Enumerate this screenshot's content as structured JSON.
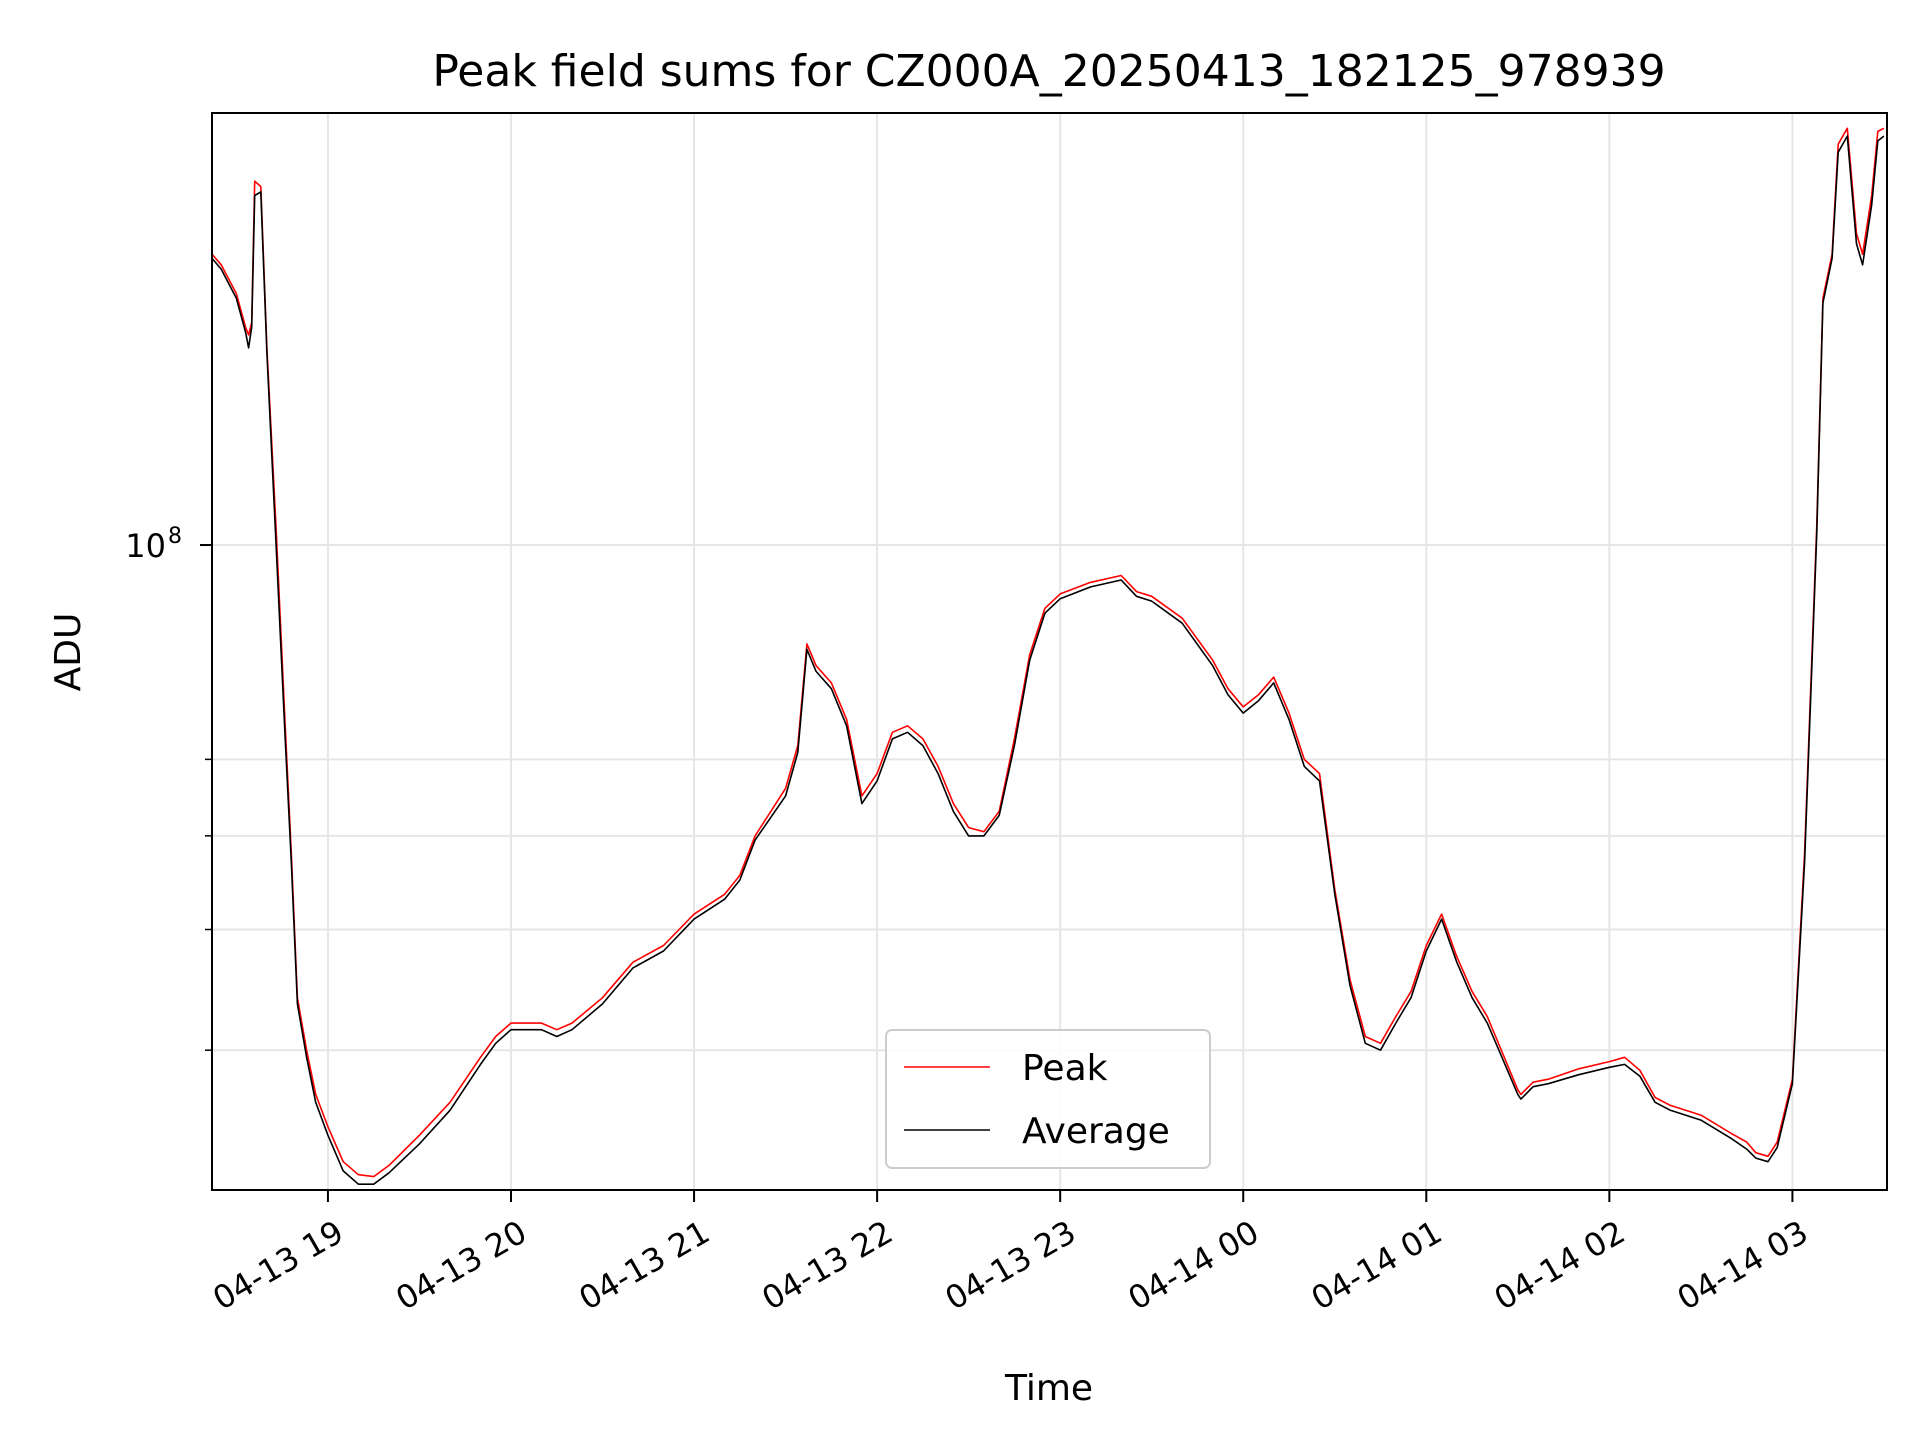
{
  "chart_data": {
    "type": "line",
    "title": "Peak field sums for CZ000A_20250413_182125_978939",
    "xlabel": "Time",
    "ylabel": "ADU",
    "y_scale": "log",
    "grid": true,
    "legend_placement": "bottom-center",
    "xlim": [
      "2025-04-13 18:22",
      "2025-04-14 03:31"
    ],
    "ylim": [
      21500000,
      280000000
    ],
    "x_ticks": [
      {
        "label": "04-13 19",
        "value": "2025-04-13 19:00"
      },
      {
        "label": "04-13 20",
        "value": "2025-04-13 20:00"
      },
      {
        "label": "04-13 21",
        "value": "2025-04-13 21:00"
      },
      {
        "label": "04-13 22",
        "value": "2025-04-13 22:00"
      },
      {
        "label": "04-13 23",
        "value": "2025-04-13 23:00"
      },
      {
        "label": "04-14 00",
        "value": "2025-04-14 00:00"
      },
      {
        "label": "04-14 01",
        "value": "2025-04-14 01:00"
      },
      {
        "label": "04-14 02",
        "value": "2025-04-14 02:00"
      },
      {
        "label": "04-14 03",
        "value": "2025-04-14 03:00"
      }
    ],
    "y_tick_label": {
      "base": "10",
      "exponent": "8",
      "value": 100000000
    },
    "y_minor_ticks": [
      30000000,
      40000000,
      50000000,
      60000000
    ],
    "series": [
      {
        "name": "Peak",
        "color": "#ff0000",
        "x": [
          "2025-04-13 18:22",
          "2025-04-13 18:25",
          "2025-04-13 18:30",
          "2025-04-13 18:33",
          "2025-04-13 18:34",
          "2025-04-13 18:35",
          "2025-04-13 18:36",
          "2025-04-13 18:38",
          "2025-04-13 18:40",
          "2025-04-13 18:43",
          "2025-04-13 18:46",
          "2025-04-13 18:48",
          "2025-04-13 18:50",
          "2025-04-13 18:53",
          "2025-04-13 18:56",
          "2025-04-13 19:00",
          "2025-04-13 19:05",
          "2025-04-13 19:10",
          "2025-04-13 19:15",
          "2025-04-13 19:20",
          "2025-04-13 19:30",
          "2025-04-13 19:40",
          "2025-04-13 19:50",
          "2025-04-13 19:55",
          "2025-04-13 20:00",
          "2025-04-13 20:10",
          "2025-04-13 20:15",
          "2025-04-13 20:20",
          "2025-04-13 20:30",
          "2025-04-13 20:40",
          "2025-04-13 20:50",
          "2025-04-13 21:00",
          "2025-04-13 21:10",
          "2025-04-13 21:15",
          "2025-04-13 21:20",
          "2025-04-13 21:30",
          "2025-04-13 21:34",
          "2025-04-13 21:37",
          "2025-04-13 21:40",
          "2025-04-13 21:45",
          "2025-04-13 21:50",
          "2025-04-13 21:55",
          "2025-04-13 22:00",
          "2025-04-13 22:05",
          "2025-04-13 22:10",
          "2025-04-13 22:15",
          "2025-04-13 22:20",
          "2025-04-13 22:25",
          "2025-04-13 22:30",
          "2025-04-13 22:35",
          "2025-04-13 22:40",
          "2025-04-13 22:45",
          "2025-04-13 22:50",
          "2025-04-13 22:55",
          "2025-04-13 23:00",
          "2025-04-13 23:10",
          "2025-04-13 23:20",
          "2025-04-13 23:25",
          "2025-04-13 23:30",
          "2025-04-13 23:40",
          "2025-04-13 23:50",
          "2025-04-13 23:55",
          "2025-04-14 00:00",
          "2025-04-14 00:05",
          "2025-04-14 00:10",
          "2025-04-14 00:15",
          "2025-04-14 00:20",
          "2025-04-14 00:25",
          "2025-04-14 00:30",
          "2025-04-14 00:35",
          "2025-04-14 00:40",
          "2025-04-14 00:45",
          "2025-04-14 00:50",
          "2025-04-14 00:55",
          "2025-04-14 01:00",
          "2025-04-14 01:05",
          "2025-04-14 01:10",
          "2025-04-14 01:15",
          "2025-04-14 01:20",
          "2025-04-14 01:30",
          "2025-04-14 01:31",
          "2025-04-14 01:35",
          "2025-04-14 01:40",
          "2025-04-14 01:50",
          "2025-04-14 02:00",
          "2025-04-14 02:05",
          "2025-04-14 02:10",
          "2025-04-14 02:15",
          "2025-04-14 02:20",
          "2025-04-14 02:30",
          "2025-04-14 02:40",
          "2025-04-14 02:45",
          "2025-04-14 02:48",
          "2025-04-14 02:52",
          "2025-04-14 02:55",
          "2025-04-14 03:00",
          "2025-04-14 03:04",
          "2025-04-14 03:08",
          "2025-04-14 03:10",
          "2025-04-14 03:13",
          "2025-04-14 03:15",
          "2025-04-14 03:18",
          "2025-04-14 03:21",
          "2025-04-14 03:23",
          "2025-04-14 03:26",
          "2025-04-14 03:28",
          "2025-04-14 03:30"
        ],
        "y": [
          200000000,
          195000000,
          182000000,
          168000000,
          165000000,
          170000000,
          238000000,
          235000000,
          160000000,
          104000000,
          65000000,
          48000000,
          34000000,
          30000000,
          27000000,
          25000000,
          23000000,
          22300000,
          22200000,
          22800000,
          24500000,
          26500000,
          29500000,
          31000000,
          32000000,
          32000000,
          31500000,
          32000000,
          34000000,
          37000000,
          38500000,
          41500000,
          43500000,
          45500000,
          50000000,
          56000000,
          62000000,
          79000000,
          75000000,
          72000000,
          66000000,
          55000000,
          58000000,
          64000000,
          65000000,
          63000000,
          59000000,
          54000000,
          51000000,
          50500000,
          53000000,
          63000000,
          77000000,
          86000000,
          89000000,
          91500000,
          93000000,
          89500000,
          88500000,
          84000000,
          76000000,
          71000000,
          68000000,
          70000000,
          73000000,
          67000000,
          60000000,
          58000000,
          44000000,
          35500000,
          31000000,
          30500000,
          32500000,
          34500000,
          38500000,
          41500000,
          37500000,
          34500000,
          32500000,
          27300000,
          27000000,
          27800000,
          28000000,
          28700000,
          29200000,
          29500000,
          28600000,
          26800000,
          26300000,
          25700000,
          24600000,
          24100000,
          23500000,
          23300000,
          24100000,
          28000000,
          48000000,
          105000000,
          180000000,
          200000000,
          260000000,
          270000000,
          210000000,
          200000000,
          230000000,
          268000000,
          270000000
        ]
      },
      {
        "name": "Average",
        "color": "#000000",
        "x": [
          "2025-04-13 18:22",
          "2025-04-13 18:25",
          "2025-04-13 18:30",
          "2025-04-13 18:33",
          "2025-04-13 18:34",
          "2025-04-13 18:35",
          "2025-04-13 18:36",
          "2025-04-13 18:38",
          "2025-04-13 18:40",
          "2025-04-13 18:43",
          "2025-04-13 18:46",
          "2025-04-13 18:48",
          "2025-04-13 18:50",
          "2025-04-13 18:53",
          "2025-04-13 18:56",
          "2025-04-13 19:00",
          "2025-04-13 19:05",
          "2025-04-13 19:10",
          "2025-04-13 19:15",
          "2025-04-13 19:20",
          "2025-04-13 19:30",
          "2025-04-13 19:40",
          "2025-04-13 19:50",
          "2025-04-13 19:55",
          "2025-04-13 20:00",
          "2025-04-13 20:10",
          "2025-04-13 20:15",
          "2025-04-13 20:20",
          "2025-04-13 20:30",
          "2025-04-13 20:40",
          "2025-04-13 20:50",
          "2025-04-13 21:00",
          "2025-04-13 21:10",
          "2025-04-13 21:15",
          "2025-04-13 21:20",
          "2025-04-13 21:30",
          "2025-04-13 21:34",
          "2025-04-13 21:37",
          "2025-04-13 21:40",
          "2025-04-13 21:45",
          "2025-04-13 21:50",
          "2025-04-13 21:55",
          "2025-04-13 22:00",
          "2025-04-13 22:05",
          "2025-04-13 22:10",
          "2025-04-13 22:15",
          "2025-04-13 22:20",
          "2025-04-13 22:25",
          "2025-04-13 22:30",
          "2025-04-13 22:35",
          "2025-04-13 22:40",
          "2025-04-13 22:45",
          "2025-04-13 22:50",
          "2025-04-13 22:55",
          "2025-04-13 23:00",
          "2025-04-13 23:10",
          "2025-04-13 23:20",
          "2025-04-13 23:25",
          "2025-04-13 23:30",
          "2025-04-13 23:40",
          "2025-04-13 23:50",
          "2025-04-13 23:55",
          "2025-04-14 00:00",
          "2025-04-14 00:05",
          "2025-04-14 00:10",
          "2025-04-14 00:15",
          "2025-04-14 00:20",
          "2025-04-14 00:25",
          "2025-04-14 00:30",
          "2025-04-14 00:35",
          "2025-04-14 00:40",
          "2025-04-14 00:45",
          "2025-04-14 00:50",
          "2025-04-14 00:55",
          "2025-04-14 01:00",
          "2025-04-14 01:05",
          "2025-04-14 01:10",
          "2025-04-14 01:15",
          "2025-04-14 01:20",
          "2025-04-14 01:30",
          "2025-04-14 01:31",
          "2025-04-14 01:35",
          "2025-04-14 01:40",
          "2025-04-14 01:50",
          "2025-04-14 02:00",
          "2025-04-14 02:05",
          "2025-04-14 02:10",
          "2025-04-14 02:15",
          "2025-04-14 02:20",
          "2025-04-14 02:30",
          "2025-04-14 02:40",
          "2025-04-14 02:45",
          "2025-04-14 02:48",
          "2025-04-14 02:52",
          "2025-04-14 02:55",
          "2025-04-14 03:00",
          "2025-04-14 03:04",
          "2025-04-14 03:08",
          "2025-04-14 03:10",
          "2025-04-14 03:13",
          "2025-04-14 03:15",
          "2025-04-14 03:18",
          "2025-04-14 03:21",
          "2025-04-14 03:23",
          "2025-04-14 03:26",
          "2025-04-14 03:28",
          "2025-04-14 03:30"
        ],
        "y": [
          198000000,
          193000000,
          180000000,
          166000000,
          160000000,
          168000000,
          230000000,
          232000000,
          158000000,
          100000000,
          63000000,
          47000000,
          33500000,
          29500000,
          26500000,
          24500000,
          22500000,
          21800000,
          21800000,
          22400000,
          24000000,
          26000000,
          29000000,
          30500000,
          31500000,
          31500000,
          31000000,
          31500000,
          33500000,
          36500000,
          38000000,
          41000000,
          43000000,
          45000000,
          49500000,
          55000000,
          61000000,
          78000000,
          74000000,
          71000000,
          65000000,
          54000000,
          57000000,
          63000000,
          64000000,
          62000000,
          58000000,
          53000000,
          50000000,
          50000000,
          52500000,
          62000000,
          76000000,
          85000000,
          88000000,
          90500000,
          92000000,
          88500000,
          87500000,
          83000000,
          75000000,
          70000000,
          67000000,
          69000000,
          72000000,
          66000000,
          59000000,
          57000000,
          43500000,
          35000000,
          30500000,
          30000000,
          32000000,
          34000000,
          38000000,
          41000000,
          37000000,
          34000000,
          32000000,
          27000000,
          26700000,
          27500000,
          27700000,
          28300000,
          28800000,
          29000000,
          28200000,
          26500000,
          26000000,
          25400000,
          24300000,
          23700000,
          23200000,
          23000000,
          23800000,
          27700000,
          47000000,
          103000000,
          178000000,
          198000000,
          255000000,
          265000000,
          205000000,
          195000000,
          225000000,
          262000000,
          265000000
        ]
      }
    ]
  }
}
